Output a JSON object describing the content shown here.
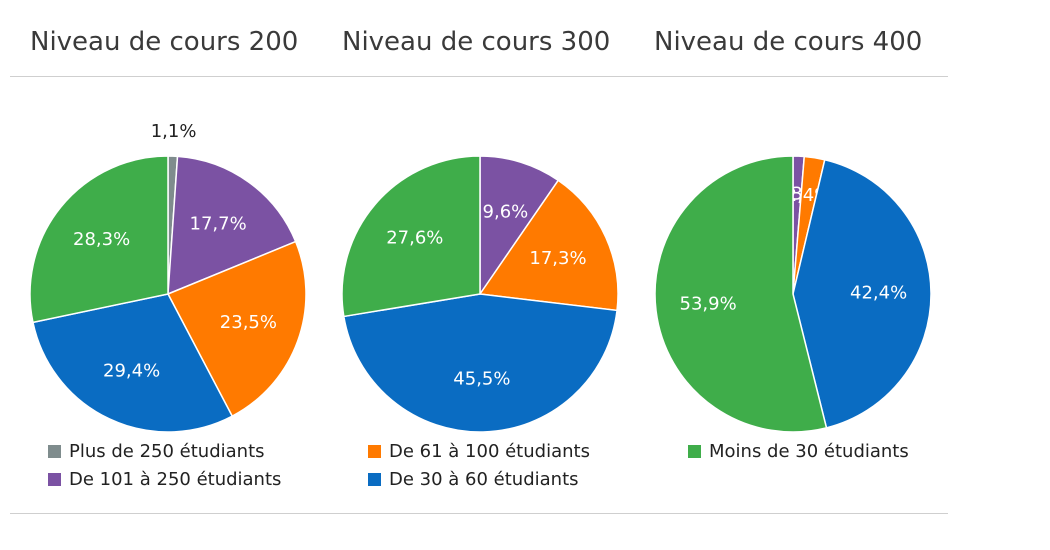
{
  "chart_data": {
    "type": "pie",
    "categories": [
      "Plus de 250 étudiants",
      "De 101 à 250 étudiants",
      "De 61 à 100 étudiants",
      "De 30 à 60 étudiants",
      "Moins de 30 étudiants"
    ],
    "colors": {
      "Plus de 250 étudiants": "#7f8c8d",
      "De 101 à 250 étudiants": "#7b52a3",
      "De 61 à 100 étudiants": "#ff7a00",
      "De 30 à 60 étudiants": "#0a6cc2",
      "Moins de 30 étudiants": "#3fad4a"
    },
    "legend_placement": "bottom",
    "charts": [
      {
        "title": "Niveau de cours 200",
        "slices": [
          {
            "category": "Plus de 250 étudiants",
            "value": 1.1,
            "label": "1,1%"
          },
          {
            "category": "De 101 à 250 étudiants",
            "value": 17.7,
            "label": "17,7%"
          },
          {
            "category": "De 61 à 100 étudiants",
            "value": 23.5,
            "label": "23,5%"
          },
          {
            "category": "De 30 à 60 étudiants",
            "value": 29.4,
            "label": "29,4%"
          },
          {
            "category": "Moins de 30 étudiants",
            "value": 28.3,
            "label": "28,3%"
          }
        ]
      },
      {
        "title": "Niveau de cours 300",
        "slices": [
          {
            "category": "De 101 à 250 étudiants",
            "value": 9.6,
            "label": "9,6%"
          },
          {
            "category": "De 61 à 100 étudiants",
            "value": 17.3,
            "label": "17,3%"
          },
          {
            "category": "De 30 à 60 étudiants",
            "value": 45.5,
            "label": "45,5%"
          },
          {
            "category": "Moins de 30 étudiants",
            "value": 27.6,
            "label": "27,6%"
          }
        ]
      },
      {
        "title": "Niveau de cours 400",
        "slices": [
          {
            "category": "De 101 à 250 étudiants",
            "value": 1.3,
            "label": "1,3%"
          },
          {
            "category": "De 61 à 100 étudiants",
            "value": 2.4,
            "label": "2,4%"
          },
          {
            "category": "De 30 à 60 étudiants",
            "value": 42.4,
            "label": "42,4%"
          },
          {
            "category": "Moins de 30 étudiants",
            "value": 53.9,
            "label": "53,9%"
          }
        ]
      }
    ]
  }
}
